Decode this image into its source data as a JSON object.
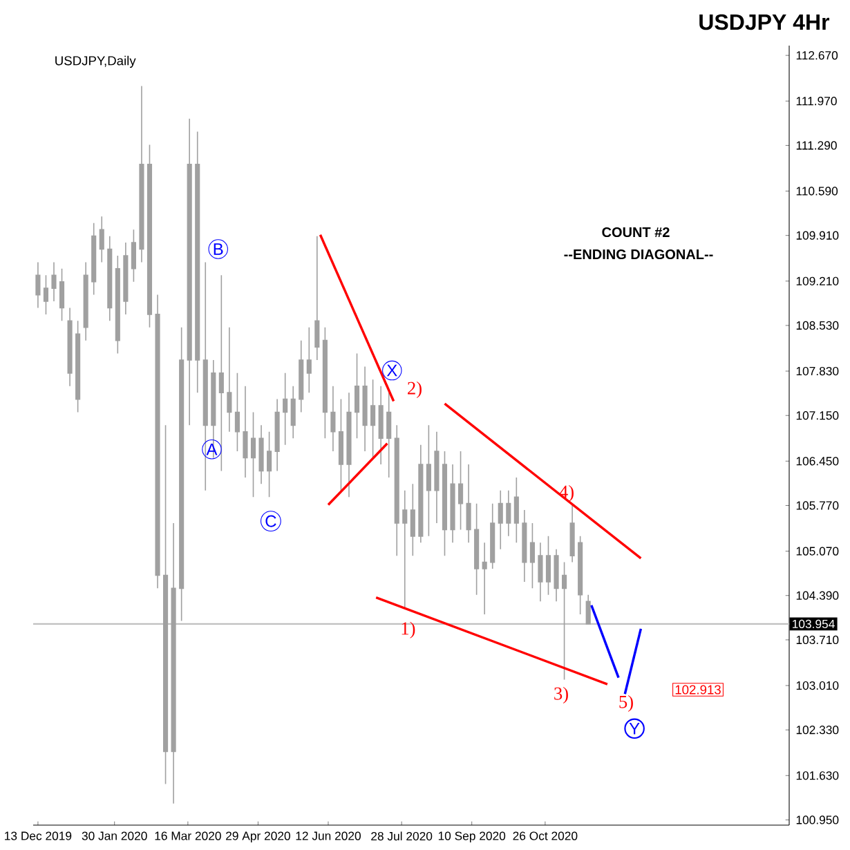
{
  "chart_data": {
    "type": "candlestick",
    "title": "USDJPY 4Hr",
    "color": "#a0a0a0",
    "x": [
      "2019-12-13",
      "2019-12-18",
      "2019-12-23",
      "2019-12-28",
      "2020-01-02",
      "2020-01-07",
      "2020-01-12",
      "2020-01-17",
      "2020-01-22",
      "2020-01-27",
      "2020-02-01",
      "2020-02-06",
      "2020-02-11",
      "2020-02-16",
      "2020-02-21",
      "2020-02-26",
      "2020-03-02",
      "2020-03-07",
      "2020-03-12",
      "2020-03-17",
      "2020-03-22",
      "2020-03-27",
      "2020-04-01",
      "2020-04-06",
      "2020-04-11",
      "2020-04-16",
      "2020-04-21",
      "2020-04-26",
      "2020-05-01",
      "2020-05-06",
      "2020-05-11",
      "2020-05-16",
      "2020-05-21",
      "2020-05-26",
      "2020-05-31",
      "2020-06-05",
      "2020-06-10",
      "2020-06-15",
      "2020-06-20",
      "2020-06-25",
      "2020-06-30",
      "2020-07-05",
      "2020-07-10",
      "2020-07-15",
      "2020-07-20",
      "2020-07-25",
      "2020-07-30",
      "2020-08-04",
      "2020-08-09",
      "2020-08-14",
      "2020-08-19",
      "2020-08-24",
      "2020-08-29",
      "2020-09-03",
      "2020-09-08",
      "2020-09-13",
      "2020-09-18",
      "2020-09-23",
      "2020-09-28",
      "2020-10-03",
      "2020-10-08",
      "2020-10-13",
      "2020-10-18",
      "2020-10-23",
      "2020-10-28",
      "2020-11-02",
      "2020-11-07",
      "2020-11-12",
      "2020-11-17",
      "2020-11-22"
    ],
    "ohlc": [
      [
        109.3,
        109.5,
        108.8,
        109.0
      ],
      [
        108.9,
        109.3,
        108.7,
        109.1
      ],
      [
        109.1,
        109.5,
        108.9,
        109.3
      ],
      [
        109.2,
        109.4,
        108.6,
        108.8
      ],
      [
        108.6,
        108.8,
        107.6,
        107.8
      ],
      [
        107.4,
        108.6,
        107.2,
        108.4
      ],
      [
        108.5,
        109.5,
        108.3,
        109.3
      ],
      [
        109.2,
        110.1,
        109.0,
        109.9
      ],
      [
        109.7,
        110.2,
        109.5,
        110.0
      ],
      [
        109.7,
        109.9,
        108.6,
        108.8
      ],
      [
        108.3,
        109.6,
        108.1,
        109.4
      ],
      [
        108.9,
        109.8,
        108.7,
        109.6
      ],
      [
        109.4,
        110.0,
        109.2,
        109.8
      ],
      [
        109.7,
        112.2,
        109.5,
        111.0
      ],
      [
        111.0,
        111.3,
        108.5,
        108.7
      ],
      [
        108.7,
        109.0,
        104.5,
        104.7
      ],
      [
        104.7,
        107.0,
        101.5,
        102.0
      ],
      [
        102.0,
        105.5,
        101.2,
        104.5
      ],
      [
        104.5,
        108.5,
        104.0,
        108.0
      ],
      [
        108.0,
        111.7,
        107.0,
        111.0
      ],
      [
        111.0,
        111.5,
        107.5,
        108.0
      ],
      [
        108.0,
        109.5,
        106.0,
        107.0
      ],
      [
        107.0,
        108.0,
        106.5,
        107.8
      ],
      [
        107.8,
        109.3,
        106.3,
        107.5
      ],
      [
        107.5,
        108.5,
        106.9,
        107.2
      ],
      [
        107.2,
        107.8,
        106.6,
        106.9
      ],
      [
        106.9,
        107.6,
        106.2,
        106.5
      ],
      [
        106.5,
        107.2,
        105.9,
        106.8
      ],
      [
        106.8,
        107.0,
        106.1,
        106.3
      ],
      [
        106.3,
        106.9,
        105.9,
        106.6
      ],
      [
        106.6,
        107.4,
        106.3,
        107.2
      ],
      [
        107.2,
        107.8,
        106.7,
        107.4
      ],
      [
        107.4,
        107.6,
        106.8,
        107.0
      ],
      [
        107.4,
        108.3,
        107.2,
        108.0
      ],
      [
        108.0,
        108.5,
        107.5,
        107.8
      ],
      [
        108.2,
        109.9,
        108.0,
        108.6
      ],
      [
        108.3,
        108.5,
        106.8,
        107.2
      ],
      [
        107.2,
        107.6,
        106.6,
        106.9
      ],
      [
        106.9,
        107.4,
        106.0,
        106.4
      ],
      [
        106.4,
        107.5,
        105.9,
        107.2
      ],
      [
        107.2,
        108.1,
        106.8,
        107.6
      ],
      [
        107.6,
        107.9,
        106.6,
        107.0
      ],
      [
        107.0,
        107.7,
        106.5,
        107.3
      ],
      [
        107.3,
        107.6,
        106.4,
        106.8
      ],
      [
        106.8,
        107.5,
        106.2,
        107.2
      ],
      [
        106.8,
        107.0,
        105.0,
        105.5
      ],
      [
        105.5,
        106.0,
        104.2,
        105.7
      ],
      [
        105.7,
        106.1,
        105.0,
        105.3
      ],
      [
        105.3,
        106.7,
        105.2,
        106.4
      ],
      [
        106.4,
        107.0,
        105.3,
        106.0
      ],
      [
        106.0,
        106.9,
        105.5,
        106.6
      ],
      [
        106.4,
        106.6,
        105.0,
        105.4
      ],
      [
        105.4,
        106.4,
        105.2,
        106.1
      ],
      [
        106.1,
        106.6,
        105.4,
        105.8
      ],
      [
        105.8,
        106.4,
        105.2,
        105.4
      ],
      [
        105.4,
        105.8,
        104.4,
        104.8
      ],
      [
        104.8,
        105.2,
        104.1,
        104.9
      ],
      [
        104.9,
        105.8,
        104.8,
        105.5
      ],
      [
        105.5,
        106.0,
        105.1,
        105.8
      ],
      [
        105.8,
        106.0,
        105.3,
        105.5
      ],
      [
        105.5,
        106.2,
        105.2,
        105.9
      ],
      [
        105.5,
        105.7,
        104.6,
        104.9
      ],
      [
        104.9,
        105.5,
        104.5,
        105.2
      ],
      [
        105.0,
        105.2,
        104.3,
        104.6
      ],
      [
        104.6,
        105.3,
        104.4,
        105.0
      ],
      [
        105.0,
        105.1,
        104.3,
        104.5
      ],
      [
        104.5,
        104.9,
        103.1,
        104.7
      ],
      [
        105.0,
        105.8,
        104.9,
        105.5
      ],
      [
        105.2,
        105.3,
        104.1,
        104.4
      ],
      [
        104.3,
        104.4,
        103.954,
        103.954
      ]
    ],
    "xlim": [
      "2019-12-10",
      "2021-03-28"
    ],
    "xticks": [
      {
        "value": "2019-12-13",
        "label": "13 Dec 2019"
      },
      {
        "value": "2020-01-30",
        "label": "30 Jan 2020"
      },
      {
        "value": "2020-03-16",
        "label": "16 Mar 2020"
      },
      {
        "value": "2020-04-29",
        "label": "29 Apr 2020"
      },
      {
        "value": "2020-06-12",
        "label": "12 Jun 2020"
      },
      {
        "value": "2020-07-28",
        "label": "28 Jul 2020"
      },
      {
        "value": "2020-09-10",
        "label": "10 Sep 2020"
      },
      {
        "value": "2020-10-26",
        "label": "26 Oct 2020"
      }
    ],
    "ylim": [
      100.87,
      112.82
    ],
    "yticks": [
      {
        "value": 112.67,
        "label": "112.670"
      },
      {
        "value": 111.97,
        "label": "111.970"
      },
      {
        "value": 111.29,
        "label": "111.290"
      },
      {
        "value": 110.59,
        "label": "110.590"
      },
      {
        "value": 109.91,
        "label": "109.910"
      },
      {
        "value": 109.21,
        "label": "109.210"
      },
      {
        "value": 108.53,
        "label": "108.530"
      },
      {
        "value": 107.83,
        "label": "107.830"
      },
      {
        "value": 107.15,
        "label": "107.150"
      },
      {
        "value": 106.45,
        "label": "106.450"
      },
      {
        "value": 105.77,
        "label": "105.770"
      },
      {
        "value": 105.07,
        "label": "105.070"
      },
      {
        "value": 104.39,
        "label": "104.390"
      },
      {
        "value": 103.71,
        "label": "103.710"
      },
      {
        "value": 103.01,
        "label": "103.010"
      },
      {
        "value": 102.33,
        "label": "102.330"
      },
      {
        "value": 101.63,
        "label": "101.630"
      },
      {
        "value": 100.95,
        "label": "100.950"
      }
    ],
    "ref_lines": [
      {
        "axis": "y",
        "value": 103.954,
        "label": "103.954",
        "color": "#c0c0c0"
      }
    ],
    "series": [
      {
        "type": "line",
        "color": "#ff0000",
        "x": [
          "2020-06-07",
          "2020-07-23"
        ],
        "values": [
          109.92,
          107.37
        ]
      },
      {
        "type": "line",
        "color": "#ff0000",
        "x": [
          "2020-06-12",
          "2020-07-19"
        ],
        "values": [
          105.78,
          106.72
        ]
      },
      {
        "type": "line",
        "color": "#ff0000",
        "x": [
          "2020-08-24",
          "2020-12-25"
        ],
        "values": [
          107.33,
          104.96
        ]
      },
      {
        "type": "line",
        "color": "#ff0000",
        "x": [
          "2020-07-12",
          "2020-12-04"
        ],
        "values": [
          104.36,
          103.03
        ]
      },
      {
        "type": "line",
        "color": "#0000ff",
        "x": [
          "2020-11-24",
          "2020-12-11"
        ],
        "values": [
          104.24,
          103.13
        ]
      },
      {
        "type": "line",
        "color": "#0000ff",
        "x": [
          "2020-12-15",
          "2020-12-25"
        ],
        "values": [
          102.88,
          103.88
        ]
      }
    ],
    "annotations": [
      "USDJPY,Daily",
      {
        "text": "B",
        "x": "2020-04-04",
        "y": 109.7
      },
      {
        "text": "A",
        "x": "2020-03-31",
        "y": 106.63
      },
      {
        "text": "C",
        "x": "2020-05-07",
        "y": 105.53
      },
      {
        "text": "X",
        "x": "2020-07-22",
        "y": 107.84
      },
      {
        "text": "Y",
        "x": "2020-12-21",
        "y": 102.35
      },
      {
        "text": "1)",
        "x": "2020-08-01",
        "y": 103.86
      },
      "2)",
      "3)",
      "4)",
      "5)",
      "COUNT #2",
      "--ENDING DIAGONAL--",
      "102.913"
    ]
  }
}
